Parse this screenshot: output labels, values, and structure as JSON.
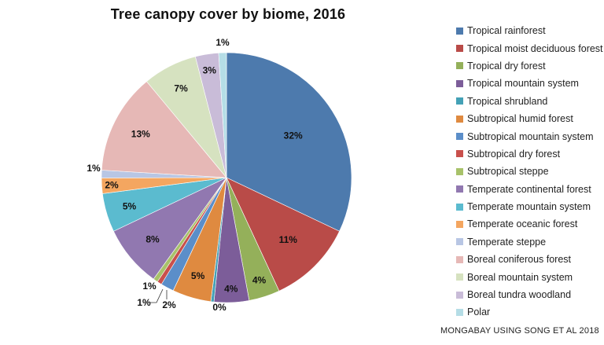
{
  "chart_data": {
    "type": "pie",
    "title": "Tree canopy cover by biome, 2016",
    "slices": [
      {
        "label": "Tropical rainforest",
        "value": 32,
        "value_label": "32%",
        "color": "#4d7aad"
      },
      {
        "label": "Tropical moist deciduous forest",
        "value": 11,
        "value_label": "11%",
        "color": "#b94b48"
      },
      {
        "label": "Tropical dry forest",
        "value": 4,
        "value_label": "4%",
        "color": "#94b05a"
      },
      {
        "label": "Tropical mountain system",
        "value": 4.5,
        "value_label": "4%",
        "color": "#7c5d99"
      },
      {
        "label": "Tropical shrubland",
        "value": 0.4,
        "value_label": "0%",
        "color": "#44a1b6"
      },
      {
        "label": "Subtropical humid forest",
        "value": 5,
        "value_label": "5%",
        "color": "#df8a40"
      },
      {
        "label": "Subtropical mountain system",
        "value": 1.7,
        "value_label": "2%",
        "color": "#5b8ec9"
      },
      {
        "label": "Subtropical dry forest",
        "value": 0.6,
        "value_label": "1%",
        "color": "#c9504c"
      },
      {
        "label": "Subtropical steppe",
        "value": 0.6,
        "value_label": "1%",
        "color": "#a8c26a"
      },
      {
        "label": "Temperate continental forest",
        "value": 8,
        "value_label": "8%",
        "color": "#9178b0"
      },
      {
        "label": "Temperate mountain system",
        "value": 5,
        "value_label": "5%",
        "color": "#5bbbcf"
      },
      {
        "label": "Temperate oceanic forest",
        "value": 2,
        "value_label": "2%",
        "color": "#f4a660"
      },
      {
        "label": "Temperate steppe",
        "value": 1,
        "value_label": "1%",
        "color": "#b8c6e4"
      },
      {
        "label": "Boreal coniferous forest",
        "value": 13,
        "value_label": "13%",
        "color": "#e6b8b6"
      },
      {
        "label": "Boreal mountain system",
        "value": 7,
        "value_label": "7%",
        "color": "#d6e2c0"
      },
      {
        "label": "Boreal tundra woodland",
        "value": 3,
        "value_label": "3%",
        "color": "#c9bcd8"
      },
      {
        "label": "Polar",
        "value": 1,
        "value_label": "1%",
        "color": "#b5dde6"
      }
    ],
    "legend_position": "right"
  },
  "source": "MONGABAY USING SONG ET AL 2018"
}
